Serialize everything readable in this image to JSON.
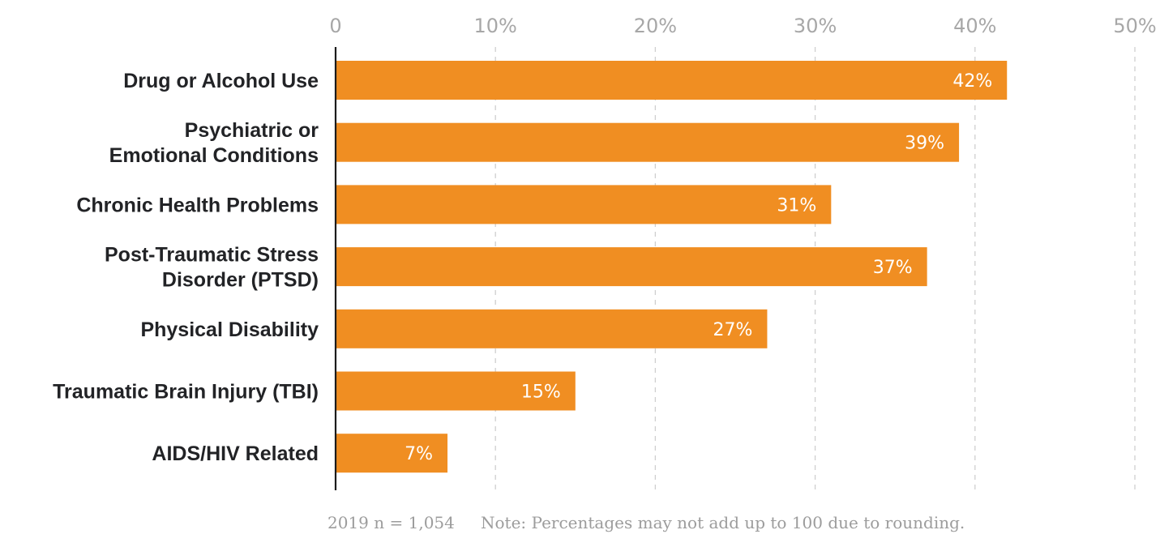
{
  "chart_data": {
    "type": "bar",
    "orientation": "horizontal",
    "categories": [
      "Drug or Alcohol Use",
      "Psychiatric or Emotional Conditions",
      "Chronic Health Problems",
      "Post-Traumatic Stress Disorder (PTSD)",
      "Physical Disability",
      "Traumatic Brain Injury (TBI)",
      "AIDS/HIV Related"
    ],
    "category_lines": [
      [
        "Drug or Alcohol Use"
      ],
      [
        "Psychiatric or",
        "Emotional Conditions"
      ],
      [
        "Chronic Health Problems"
      ],
      [
        "Post-Traumatic Stress",
        "Disorder (PTSD)"
      ],
      [
        "Physical Disability"
      ],
      [
        "Traumatic Brain Injury (TBI)"
      ],
      [
        "AIDS/HIV Related"
      ]
    ],
    "values": [
      42,
      39,
      31,
      37,
      27,
      15,
      7
    ],
    "value_labels": [
      "42%",
      "39%",
      "31%",
      "37%",
      "27%",
      "15%",
      "7%"
    ],
    "xlim": [
      0,
      50
    ],
    "x_ticks": [
      0,
      10,
      20,
      30,
      40,
      50
    ],
    "x_tick_labels": [
      "0",
      "10%",
      "20%",
      "30%",
      "40%",
      "50%"
    ],
    "x_axis_position": "top",
    "grid": true,
    "bar_color": "#f08e22",
    "title": "",
    "xlabel": "",
    "ylabel": ""
  },
  "footnote": {
    "sample": "2019 n = 1,054",
    "note": "Note: Percentages may not add up to 100 due to rounding."
  }
}
